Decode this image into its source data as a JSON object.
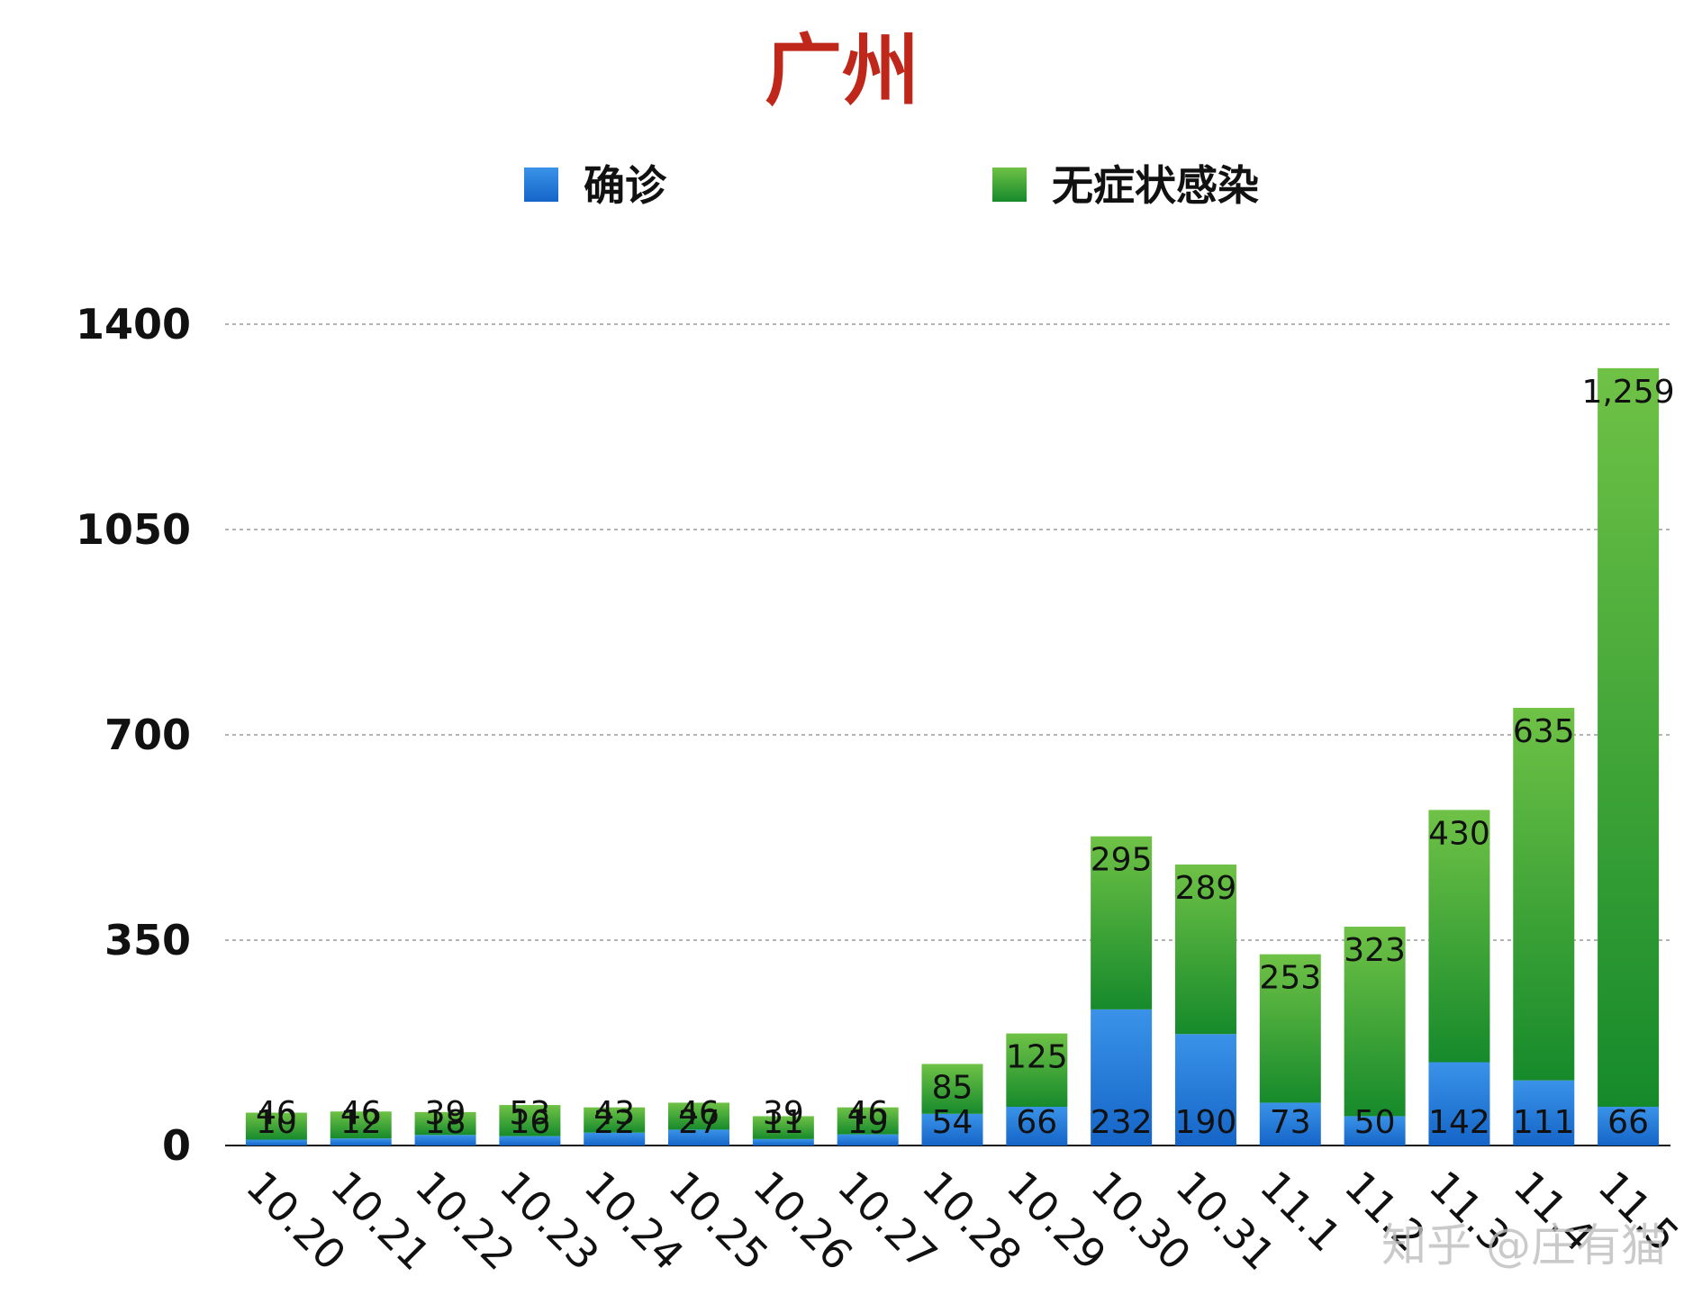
{
  "chart_data": {
    "type": "bar",
    "stacked": true,
    "title": "广州",
    "categories": [
      "10.20",
      "10.21",
      "10.22",
      "10.23",
      "10.24",
      "10.25",
      "10.26",
      "10.27",
      "10.28",
      "10.29",
      "10.30",
      "10.31",
      "11.1",
      "11.2",
      "11.3",
      "11.4",
      "11.5"
    ],
    "series": [
      {
        "name": "确诊",
        "color": "#1f7ad6",
        "values": [
          10,
          12,
          18,
          16,
          22,
          27,
          11,
          19,
          54,
          66,
          232,
          190,
          73,
          50,
          142,
          111,
          66
        ],
        "labels": [
          "10",
          "12",
          "18",
          "16",
          "22",
          "27",
          "11",
          "19",
          "54",
          "66",
          "232",
          "190",
          "73",
          "50",
          "142",
          "111",
          "66"
        ]
      },
      {
        "name": "无症状感染",
        "color": "#2e9e2e",
        "values": [
          46,
          46,
          39,
          53,
          43,
          46,
          39,
          46,
          85,
          125,
          295,
          289,
          253,
          323,
          430,
          635,
          1259
        ],
        "labels": [
          "46",
          "46",
          "39",
          "53",
          "43",
          "46",
          "39",
          "46",
          "85",
          "125",
          "295",
          "289",
          "253",
          "323",
          "430",
          "635",
          "1,259"
        ]
      }
    ],
    "yticks": [
      "0",
      "350",
      "700",
      "1050",
      "1400"
    ],
    "ylim": [
      0,
      1400
    ],
    "grid": "horizontal dashed",
    "legend": "top-center",
    "title_color": "#c0271b",
    "xlabel": "",
    "ylabel": ""
  },
  "watermark": "知乎 @庄有猫"
}
